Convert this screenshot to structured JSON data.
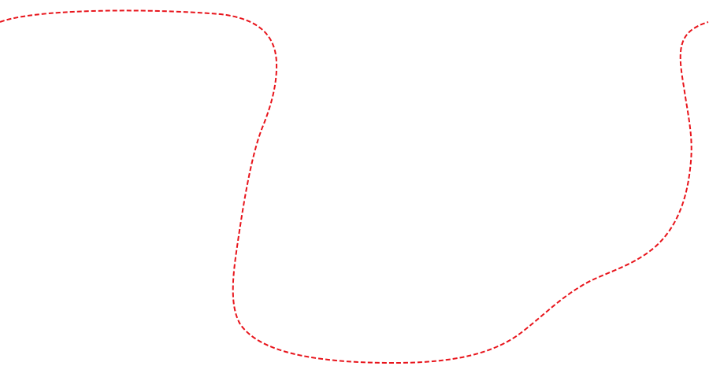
{
  "canvas": {
    "background_color": "#ffffff"
  },
  "dashed_path": {
    "stroke_color": "#e8141b",
    "style": "dashed"
  }
}
